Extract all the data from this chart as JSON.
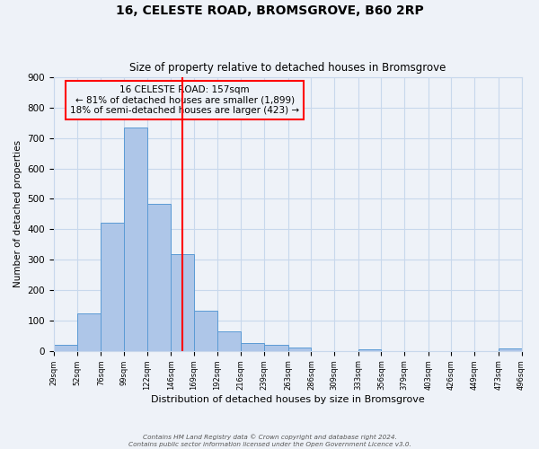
{
  "title": "16, CELESTE ROAD, BROMSGROVE, B60 2RP",
  "subtitle": "Size of property relative to detached houses in Bromsgrove",
  "xlabel": "Distribution of detached houses by size in Bromsgrove",
  "ylabel": "Number of detached properties",
  "bin_labels": [
    "29sqm",
    "52sqm",
    "76sqm",
    "99sqm",
    "122sqm",
    "146sqm",
    "169sqm",
    "192sqm",
    "216sqm",
    "239sqm",
    "263sqm",
    "286sqm",
    "309sqm",
    "333sqm",
    "356sqm",
    "379sqm",
    "403sqm",
    "426sqm",
    "449sqm",
    "473sqm",
    "496sqm"
  ],
  "bin_edges": [
    29,
    52,
    76,
    99,
    122,
    146,
    169,
    192,
    216,
    239,
    263,
    286,
    309,
    333,
    356,
    379,
    403,
    426,
    449,
    473,
    496
  ],
  "bin_values": [
    20,
    122,
    420,
    733,
    483,
    317,
    133,
    65,
    25,
    20,
    10,
    0,
    0,
    5,
    0,
    0,
    0,
    0,
    0,
    8,
    0
  ],
  "bar_color": "#aec6e8",
  "bar_edge_color": "#5b9bd5",
  "reference_line_x": 157,
  "reference_line_color": "red",
  "annotation_title": "16 CELESTE ROAD: 157sqm",
  "annotation_line1": "← 81% of detached houses are smaller (1,899)",
  "annotation_line2": "18% of semi-detached houses are larger (423) →",
  "annotation_box_color": "red",
  "ylim": [
    0,
    900
  ],
  "yticks": [
    0,
    100,
    200,
    300,
    400,
    500,
    600,
    700,
    800,
    900
  ],
  "grid_color": "#c8d8ec",
  "background_color": "#eef2f8",
  "footer_line1": "Contains HM Land Registry data © Crown copyright and database right 2024.",
  "footer_line2": "Contains public sector information licensed under the Open Government Licence v3.0."
}
